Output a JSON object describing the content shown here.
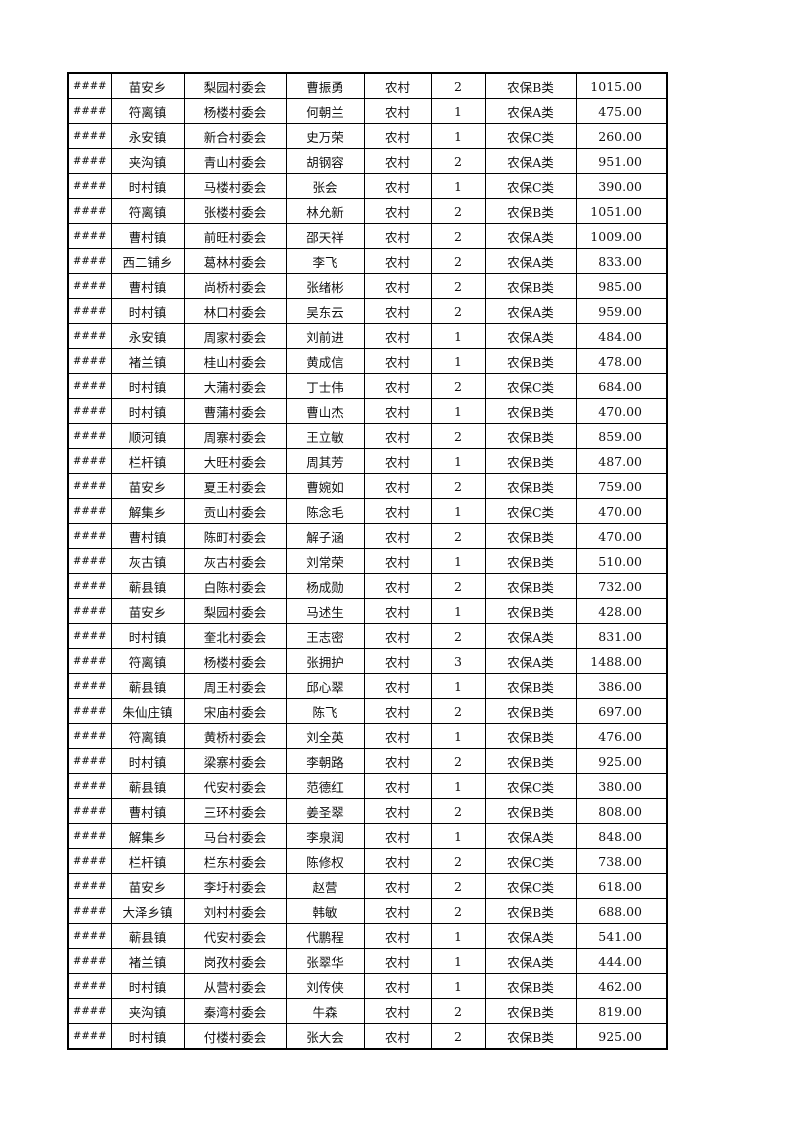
{
  "rows": [
    [
      "####",
      "苗安乡",
      "梨园村委会",
      "曹振勇",
      "农村",
      "2",
      "农保B类",
      "1015.00"
    ],
    [
      "####",
      "符离镇",
      "杨楼村委会",
      "何朝兰",
      "农村",
      "1",
      "农保A类",
      "475.00"
    ],
    [
      "####",
      "永安镇",
      "新合村委会",
      "史万荣",
      "农村",
      "1",
      "农保C类",
      "260.00"
    ],
    [
      "####",
      "夹沟镇",
      "青山村委会",
      "胡钢容",
      "农村",
      "2",
      "农保A类",
      "951.00"
    ],
    [
      "####",
      "时村镇",
      "马楼村委会",
      "张会",
      "农村",
      "1",
      "农保C类",
      "390.00"
    ],
    [
      "####",
      "符离镇",
      "张楼村委会",
      "林允新",
      "农村",
      "2",
      "农保B类",
      "1051.00"
    ],
    [
      "####",
      "曹村镇",
      "前旺村委会",
      "邵天祥",
      "农村",
      "2",
      "农保A类",
      "1009.00"
    ],
    [
      "####",
      "西二铺乡",
      "葛林村委会",
      "李飞",
      "农村",
      "2",
      "农保A类",
      "833.00"
    ],
    [
      "####",
      "曹村镇",
      "尚桥村委会",
      "张绪彬",
      "农村",
      "2",
      "农保B类",
      "985.00"
    ],
    [
      "####",
      "时村镇",
      "林口村委会",
      "吴东云",
      "农村",
      "2",
      "农保A类",
      "959.00"
    ],
    [
      "####",
      "永安镇",
      "周家村委会",
      "刘前进",
      "农村",
      "1",
      "农保A类",
      "484.00"
    ],
    [
      "####",
      "褚兰镇",
      "桂山村委会",
      "黄成信",
      "农村",
      "1",
      "农保B类",
      "478.00"
    ],
    [
      "####",
      "时村镇",
      "大蒲村委会",
      "丁士伟",
      "农村",
      "2",
      "农保C类",
      "684.00"
    ],
    [
      "####",
      "时村镇",
      "曹蒲村委会",
      "曹山杰",
      "农村",
      "1",
      "农保B类",
      "470.00"
    ],
    [
      "####",
      "顺河镇",
      "周寨村委会",
      "王立敏",
      "农村",
      "2",
      "农保B类",
      "859.00"
    ],
    [
      "####",
      "栏杆镇",
      "大旺村委会",
      "周其芳",
      "农村",
      "1",
      "农保B类",
      "487.00"
    ],
    [
      "####",
      "苗安乡",
      "夏王村委会",
      "曹婉如",
      "农村",
      "2",
      "农保B类",
      "759.00"
    ],
    [
      "####",
      "解集乡",
      "贡山村委会",
      "陈念毛",
      "农村",
      "1",
      "农保C类",
      "470.00"
    ],
    [
      "####",
      "曹村镇",
      "陈町村委会",
      "解子涵",
      "农村",
      "2",
      "农保B类",
      "470.00"
    ],
    [
      "####",
      "灰古镇",
      "灰古村委会",
      "刘常荣",
      "农村",
      "1",
      "农保B类",
      "510.00"
    ],
    [
      "####",
      "蕲县镇",
      "白陈村委会",
      "杨成勋",
      "农村",
      "2",
      "农保B类",
      "732.00"
    ],
    [
      "####",
      "苗安乡",
      "梨园村委会",
      "马述生",
      "农村",
      "1",
      "农保B类",
      "428.00"
    ],
    [
      "####",
      "时村镇",
      "奎北村委会",
      "王志密",
      "农村",
      "2",
      "农保A类",
      "831.00"
    ],
    [
      "####",
      "符离镇",
      "杨楼村委会",
      "张拥护",
      "农村",
      "3",
      "农保A类",
      "1488.00"
    ],
    [
      "####",
      "蕲县镇",
      "周王村委会",
      "邱心翠",
      "农村",
      "1",
      "农保B类",
      "386.00"
    ],
    [
      "####",
      "朱仙庄镇",
      "宋庙村委会",
      "陈飞",
      "农村",
      "2",
      "农保B类",
      "697.00"
    ],
    [
      "####",
      "符离镇",
      "黄桥村委会",
      "刘全英",
      "农村",
      "1",
      "农保B类",
      "476.00"
    ],
    [
      "####",
      "时村镇",
      "梁寨村委会",
      "李朝路",
      "农村",
      "2",
      "农保B类",
      "925.00"
    ],
    [
      "####",
      "蕲县镇",
      "代安村委会",
      "范德红",
      "农村",
      "1",
      "农保C类",
      "380.00"
    ],
    [
      "####",
      "曹村镇",
      "三环村委会",
      "姜圣翠",
      "农村",
      "2",
      "农保B类",
      "808.00"
    ],
    [
      "####",
      "解集乡",
      "马台村委会",
      "李泉润",
      "农村",
      "1",
      "农保A类",
      "848.00"
    ],
    [
      "####",
      "栏杆镇",
      "栏东村委会",
      "陈修权",
      "农村",
      "2",
      "农保C类",
      "738.00"
    ],
    [
      "####",
      "苗安乡",
      "李圩村委会",
      "赵营",
      "农村",
      "2",
      "农保C类",
      "618.00"
    ],
    [
      "####",
      "大泽乡镇",
      "刘村村委会",
      "韩敏",
      "农村",
      "2",
      "农保B类",
      "688.00"
    ],
    [
      "####",
      "蕲县镇",
      "代安村委会",
      "代鹏程",
      "农村",
      "1",
      "农保A类",
      "541.00"
    ],
    [
      "####",
      "褚兰镇",
      "岗孜村委会",
      "张翠华",
      "农村",
      "1",
      "农保A类",
      "444.00"
    ],
    [
      "####",
      "时村镇",
      "从营村委会",
      "刘传侠",
      "农村",
      "1",
      "农保B类",
      "462.00"
    ],
    [
      "####",
      "夹沟镇",
      "秦湾村委会",
      "牛森",
      "农村",
      "2",
      "农保B类",
      "819.00"
    ],
    [
      "####",
      "时村镇",
      "付楼村委会",
      "张大会",
      "农村",
      "2",
      "农保B类",
      "925.00"
    ]
  ]
}
